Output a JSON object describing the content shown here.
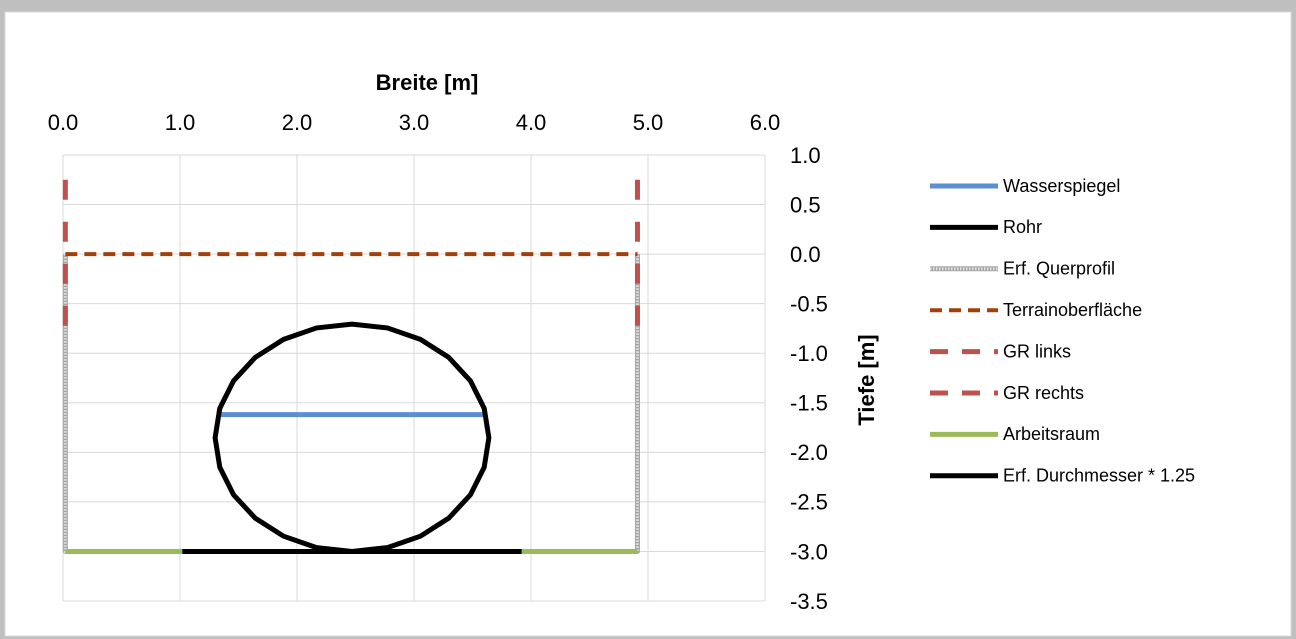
{
  "chart_data": {
    "type": "line",
    "xlabel": "Breite [m]",
    "ylabel": "Tiefe [m]",
    "xlim": [
      0,
      6
    ],
    "xticks": [
      {
        "value": 0,
        "label": "0.0"
      },
      {
        "value": 1,
        "label": "1.0"
      },
      {
        "value": 2,
        "label": "2.0"
      },
      {
        "value": 3,
        "label": "3.0"
      },
      {
        "value": 4,
        "label": "4.0"
      },
      {
        "value": 5,
        "label": "5.0"
      },
      {
        "value": 6,
        "label": "6.0"
      }
    ],
    "ylim": [
      -3.5,
      1
    ],
    "yticks": [
      {
        "value": 1,
        "label": "1.0"
      },
      {
        "value": 0.5,
        "label": "0.5"
      },
      {
        "value": 0,
        "label": "0.0"
      },
      {
        "value": -0.5,
        "label": "-0.5"
      },
      {
        "value": -1,
        "label": "-1.0"
      },
      {
        "value": -1.5,
        "label": "-1.5"
      },
      {
        "value": -2,
        "label": "-2.0"
      },
      {
        "value": -2.5,
        "label": "-2.5"
      },
      {
        "value": -3,
        "label": "-3.0"
      },
      {
        "value": -3.5,
        "label": "-3.5"
      }
    ],
    "grid": true,
    "legend": "right",
    "series": [
      {
        "name": "Wasserspiegel",
        "color": "#5b8fd4",
        "line_style": "solid",
        "x": [
          1.33,
          3.62
        ],
        "values": [
          -1.62,
          -1.62
        ]
      },
      {
        "name": "Rohr",
        "color": "#000000",
        "line_style": "solid",
        "x": [
          2.47,
          2.773,
          3.055,
          3.297,
          3.483,
          3.6,
          3.64,
          3.6,
          3.483,
          3.297,
          3.055,
          2.773,
          2.47,
          2.167,
          1.885,
          1.643,
          1.457,
          1.34,
          1.3,
          1.34,
          1.457,
          1.643,
          1.885,
          2.167,
          2.47
        ],
        "values": [
          -3.0,
          -2.961,
          -2.846,
          -2.664,
          -2.427,
          -2.15,
          -1.853,
          -1.556,
          -1.28,
          -1.042,
          -0.86,
          -0.745,
          -0.706,
          -0.745,
          -0.86,
          -1.042,
          -1.28,
          -1.556,
          -1.853,
          -2.15,
          -2.427,
          -2.664,
          -2.846,
          -2.961,
          -3.0
        ]
      },
      {
        "name": "Erf. Querprofil",
        "color": "#a6a6a6",
        "line_style": "striped",
        "x": [
          0.02,
          0.02,
          4.91,
          4.91
        ],
        "values": [
          0,
          -3,
          -3,
          0
        ]
      },
      {
        "name": "Terrainoberfläche",
        "color": "#a0410d",
        "line_style": "dashed",
        "x": [
          0.02,
          4.91
        ],
        "values": [
          0,
          0
        ]
      },
      {
        "name": "GR links",
        "color": "#c0504d",
        "line_style": "longdash",
        "x": [
          0.02,
          0.02
        ],
        "values": [
          0.75,
          -0.9
        ]
      },
      {
        "name": "GR rechts",
        "color": "#c0504d",
        "line_style": "longdash",
        "x": [
          4.91,
          4.91
        ],
        "values": [
          0.75,
          -0.9
        ]
      },
      {
        "name": "Arbeitsraum",
        "color": "#9bbb59",
        "line_style": "solid",
        "x": [
          0.02,
          1.02,
          2.47,
          3.92,
          4.91
        ],
        "values": [
          -3,
          -3,
          null,
          -3,
          -3
        ]
      },
      {
        "name": "Erf. Durchmesser * 1.25",
        "color": "#000000",
        "line_style": "solid",
        "x": [
          1.02,
          3.92
        ],
        "values": [
          -3,
          -3
        ]
      }
    ]
  }
}
